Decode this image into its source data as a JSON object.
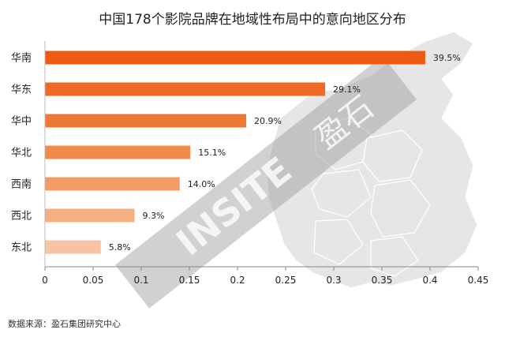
{
  "chart_data": {
    "type": "bar",
    "orientation": "horizontal",
    "title": "中国178个影院品牌在地域性布局中的意向地区分布",
    "categories": [
      "华南",
      "华东",
      "华中",
      "华北",
      "西南",
      "西北",
      "东北"
    ],
    "values": [
      0.395,
      0.291,
      0.209,
      0.151,
      0.14,
      0.093,
      0.058
    ],
    "data_labels": [
      "39.5%",
      "29.1%",
      "20.9%",
      "15.1%",
      "14.0%",
      "9.3%",
      "5.8%"
    ],
    "xlim": [
      0,
      0.45
    ],
    "xticks": [
      0,
      0.05,
      0.1,
      0.15,
      0.2,
      0.25,
      0.3,
      0.35,
      0.4,
      0.45
    ],
    "xtick_labels": [
      "0",
      "0.05",
      "0.1",
      "0.15",
      "0.2",
      "0.25",
      "0.3",
      "0.35",
      "0.4",
      "0.45"
    ],
    "grid": false,
    "legend": "none",
    "colors": [
      "#ED5A12",
      "#EF6A24",
      "#F07835",
      "#F28A4B",
      "#F49A63",
      "#F6AF82",
      "#F8C3A3"
    ]
  },
  "source_note": "数据来源：盈石集团研究中心",
  "watermark_text": "INSITE 盈石"
}
